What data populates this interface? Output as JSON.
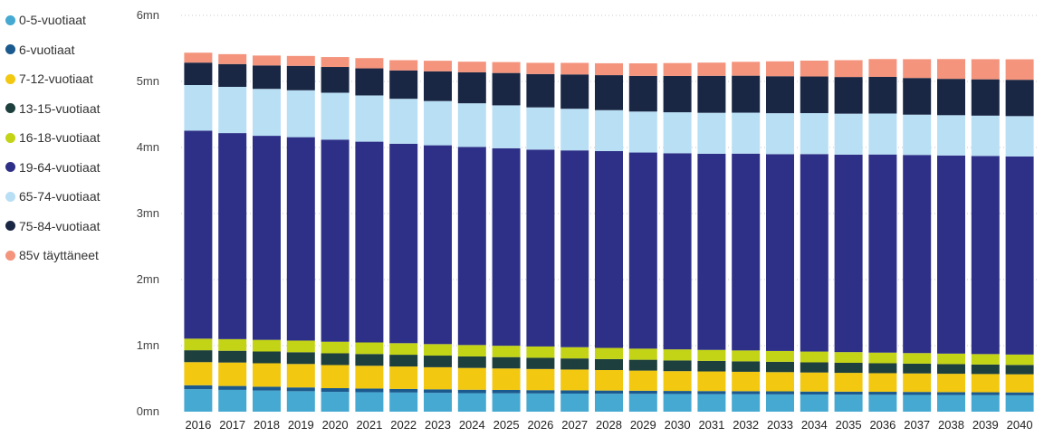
{
  "chart_data": {
    "type": "bar",
    "stacked": true,
    "title": "",
    "xlabel": "",
    "ylabel": "",
    "ylim": [
      0,
      6000000
    ],
    "yticks": [
      0,
      1000000,
      2000000,
      3000000,
      4000000,
      5000000,
      6000000
    ],
    "ytick_labels": [
      "0mn",
      "1mn",
      "2mn",
      "3mn",
      "4mn",
      "5mn",
      "6mn"
    ],
    "grid": "horizontal dotted",
    "legend_position": "left",
    "categories": [
      "2016",
      "2017",
      "2018",
      "2019",
      "2020",
      "2021",
      "2022",
      "2023",
      "2024",
      "2025",
      "2026",
      "2027",
      "2028",
      "2029",
      "2030",
      "2031",
      "2032",
      "2033",
      "2034",
      "2035",
      "2036",
      "2037",
      "2038",
      "2039",
      "2040"
    ],
    "series": [
      {
        "name": "0-5-vuotiaat",
        "color": "#46a9d1",
        "values": [
          340000,
          330000,
          320000,
          310000,
          300000,
          295000,
          290000,
          285000,
          280000,
          278000,
          276000,
          274000,
          272000,
          270000,
          268000,
          266000,
          264000,
          262000,
          260000,
          258000,
          256000,
          254000,
          252000,
          250000,
          248000
        ]
      },
      {
        "name": "6-vuotiaat",
        "color": "#1b5a8e",
        "values": [
          60000,
          59000,
          58000,
          57000,
          56000,
          55000,
          54000,
          53000,
          52000,
          51000,
          50000,
          49000,
          48000,
          47000,
          46000,
          46000,
          46000,
          46000,
          45000,
          45000,
          45000,
          45000,
          44000,
          44000,
          44000
        ]
      },
      {
        "name": "7-12-vuotiaat",
        "color": "#f2c811",
        "values": [
          350000,
          355000,
          355000,
          355000,
          350000,
          345000,
          340000,
          335000,
          330000,
          325000,
          320000,
          315000,
          310000,
          305000,
          300000,
          297000,
          294000,
          291000,
          288000,
          285000,
          282000,
          280000,
          278000,
          276000,
          274000
        ]
      },
      {
        "name": "13-15-vuotiaat",
        "color": "#1d3f3d",
        "values": [
          180000,
          178000,
          178000,
          178000,
          178000,
          178000,
          178000,
          176000,
          174000,
          172000,
          170000,
          168000,
          166000,
          164000,
          162000,
          160000,
          158000,
          156000,
          154000,
          152000,
          150000,
          148000,
          146000,
          144000,
          142000
        ]
      },
      {
        "name": "16-18-vuotiaat",
        "color": "#c3d416",
        "values": [
          175000,
          176000,
          176000,
          176000,
          175000,
          175000,
          175000,
          174000,
          173000,
          172000,
          171000,
          170000,
          169000,
          168000,
          167000,
          166000,
          165000,
          164000,
          163000,
          162000,
          161000,
          160000,
          159000,
          158000,
          157000
        ]
      },
      {
        "name": "19-64-vuotiaat",
        "color": "#2e3087",
        "values": [
          3150000,
          3120000,
          3090000,
          3080000,
          3060000,
          3040000,
          3020000,
          3010000,
          3000000,
          2990000,
          2980000,
          2980000,
          2980000,
          2970000,
          2970000,
          2970000,
          2980000,
          2980000,
          2990000,
          2990000,
          3000000,
          3000000,
          3000000,
          3000000,
          3000000
        ]
      },
      {
        "name": "65-74-vuotiaat",
        "color": "#b9dff5",
        "values": [
          690000,
          700000,
          710000,
          710000,
          710000,
          700000,
          680000,
          670000,
          660000,
          650000,
          640000,
          630000,
          620000,
          620000,
          620000,
          620000,
          620000,
          620000,
          620000,
          620000,
          620000,
          610000,
          610000,
          610000,
          610000
        ]
      },
      {
        "name": "75-84-vuotiaat",
        "color": "#1a2744",
        "values": [
          340000,
          345000,
          355000,
          370000,
          390000,
          410000,
          430000,
          450000,
          470000,
          490000,
          505000,
          520000,
          530000,
          540000,
          550000,
          560000,
          560000,
          560000,
          555000,
          555000,
          555000,
          555000,
          550000,
          550000,
          550000
        ]
      },
      {
        "name": "85v täyttäneet",
        "color": "#f4947d",
        "values": [
          150000,
          150000,
          150000,
          150000,
          150000,
          155000,
          155000,
          160000,
          160000,
          165000,
          170000,
          175000,
          180000,
          190000,
          195000,
          200000,
          210000,
          225000,
          240000,
          255000,
          270000,
          285000,
          300000,
          305000,
          310000
        ]
      }
    ]
  }
}
